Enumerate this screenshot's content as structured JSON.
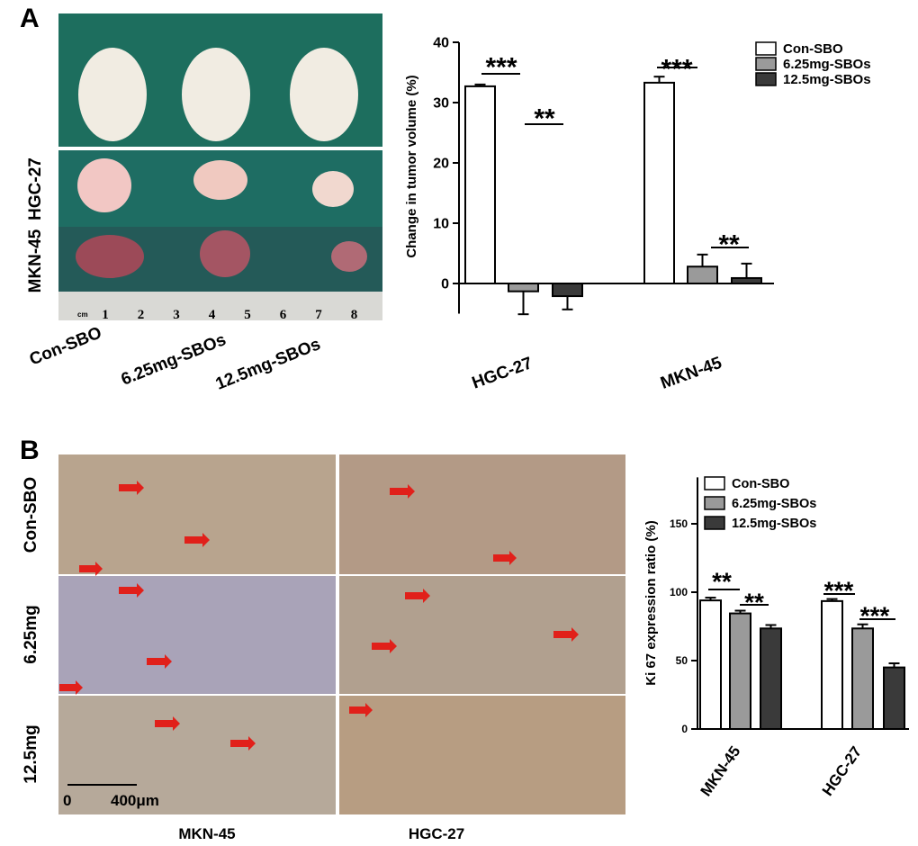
{
  "panel_labels": [
    "A",
    "B"
  ],
  "photo_a": {
    "row_labels": [
      "HGC-27",
      "MKN-45"
    ],
    "col_labels": [
      "Con-SBO",
      "6.25mg-SBOs",
      "12.5mg-SBOs"
    ],
    "ruler_unit": "cm",
    "ruler_numbers": [
      "1",
      "2",
      "3",
      "4",
      "5",
      "6",
      "7",
      "8"
    ]
  },
  "photo_b": {
    "row_labels": [
      "Con-SBO",
      "6.25mg",
      "12.5mg"
    ],
    "col_labels": [
      "MKN-45",
      "HGC-27"
    ],
    "scale_bar": [
      "0",
      "400μm"
    ]
  },
  "chart_data": [
    {
      "type": "bar",
      "y_label": "Change in tumor volume (%)",
      "categories": [
        "HGC-27",
        "MKN-45"
      ],
      "series": [
        {
          "name": "Con-SBO",
          "color": "#ffffff",
          "values": [
            32.7,
            33.3
          ],
          "errors": [
            0.3,
            1.0
          ]
        },
        {
          "name": "6.25mg-SBOs",
          "color": "#9a9a9a",
          "values": [
            -1.3,
            2.8
          ],
          "errors": [
            3.8,
            2.0
          ]
        },
        {
          "name": "12.5mg-SBOs",
          "color": "#3a3a3a",
          "values": [
            -2.1,
            0.9
          ],
          "errors": [
            2.2,
            2.4
          ]
        }
      ],
      "ylim": [
        -5,
        40
      ],
      "yticks": [
        0,
        10,
        20,
        30,
        40
      ],
      "significance": [
        "***",
        "**",
        "***",
        "**"
      ]
    },
    {
      "type": "bar",
      "y_label": "Ki 67 expression ratio (%)",
      "categories": [
        "MKN-45",
        "HGC-27"
      ],
      "series": [
        {
          "name": "Con-SBO",
          "color": "#ffffff",
          "values": [
            94,
            93.5
          ],
          "errors": [
            2,
            1.5
          ]
        },
        {
          "name": "6.25mg-SBOs",
          "color": "#9a9a9a",
          "values": [
            84.5,
            73.5
          ],
          "errors": [
            2,
            3
          ]
        },
        {
          "name": "12.5mg-SBOs",
          "color": "#3a3a3a",
          "values": [
            73.5,
            45
          ],
          "errors": [
            2.5,
            3
          ]
        }
      ],
      "ylim": [
        0,
        184
      ],
      "yticks": [
        0,
        50,
        100,
        150
      ],
      "significance": [
        "**",
        "**",
        "***",
        "***"
      ]
    }
  ]
}
